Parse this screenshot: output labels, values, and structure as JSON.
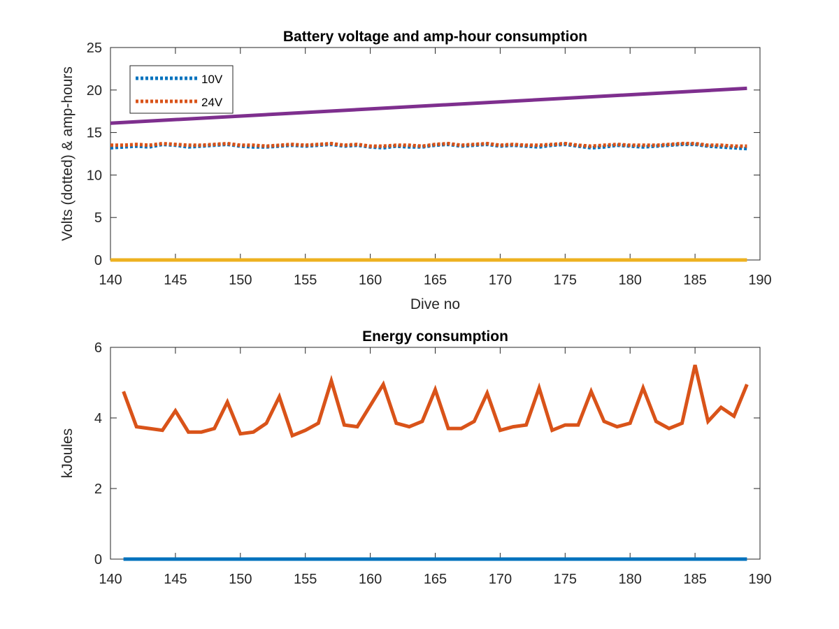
{
  "colors": {
    "volts10": "#0072BD",
    "volts24": "#D95319",
    "ampHours10": "#7E2F8E",
    "ampHours24": "#EDB120",
    "energy10": "#0072BD",
    "energy24": "#D95319"
  },
  "chart_data": [
    {
      "type": "line",
      "title": "Battery voltage and amp-hour consumption",
      "xlabel": "Dive no",
      "ylabel": "Volts (dotted) & amp-hours",
      "xlim": [
        140,
        190
      ],
      "ylim": [
        0,
        25
      ],
      "xticks": [
        140,
        145,
        150,
        155,
        160,
        165,
        170,
        175,
        180,
        185,
        190
      ],
      "yticks": [
        0,
        5,
        10,
        15,
        20,
        25
      ],
      "grid": false,
      "legend": {
        "position": "top-left",
        "entries": [
          "10V",
          "24V"
        ]
      },
      "series": [
        {
          "name": "10V",
          "style": "dotted",
          "color_key": "volts10",
          "x_start": 140,
          "x_end": 189,
          "values": [
            13.2,
            13.3,
            13.4,
            13.3,
            13.6,
            13.5,
            13.3,
            13.4,
            13.5,
            13.6,
            13.4,
            13.3,
            13.3,
            13.4,
            13.5,
            13.4,
            13.5,
            13.6,
            13.4,
            13.5,
            13.3,
            13.2,
            13.4,
            13.3,
            13.3,
            13.5,
            13.6,
            13.4,
            13.5,
            13.6,
            13.4,
            13.5,
            13.4,
            13.3,
            13.5,
            13.6,
            13.4,
            13.2,
            13.3,
            13.5,
            13.4,
            13.3,
            13.4,
            13.5,
            13.6,
            13.6,
            13.4,
            13.3,
            13.2,
            13.1
          ]
        },
        {
          "name": "24V",
          "style": "dotted",
          "color_key": "volts24",
          "x_start": 140,
          "x_end": 189,
          "values": [
            13.5,
            13.5,
            13.6,
            13.5,
            13.7,
            13.6,
            13.5,
            13.5,
            13.6,
            13.7,
            13.5,
            13.5,
            13.4,
            13.5,
            13.6,
            13.5,
            13.6,
            13.7,
            13.5,
            13.6,
            13.4,
            13.4,
            13.5,
            13.5,
            13.4,
            13.6,
            13.7,
            13.5,
            13.6,
            13.7,
            13.5,
            13.6,
            13.5,
            13.5,
            13.6,
            13.7,
            13.5,
            13.4,
            13.5,
            13.6,
            13.5,
            13.5,
            13.5,
            13.6,
            13.7,
            13.7,
            13.5,
            13.5,
            13.4,
            13.4
          ]
        },
        {
          "style": "solid",
          "color_key": "ampHours10",
          "x": [
            140,
            189
          ],
          "values": [
            16.1,
            20.2
          ]
        },
        {
          "style": "solid",
          "color_key": "ampHours24",
          "x": [
            140,
            189
          ],
          "values": [
            0,
            0
          ]
        }
      ]
    },
    {
      "type": "line",
      "title": "Energy consumption",
      "xlabel": "",
      "ylabel": "kJoules",
      "xlim": [
        140,
        190
      ],
      "ylim": [
        0,
        6
      ],
      "xticks": [
        140,
        145,
        150,
        155,
        160,
        165,
        170,
        175,
        180,
        185,
        190
      ],
      "yticks": [
        0,
        2,
        4,
        6
      ],
      "grid": false,
      "series": [
        {
          "style": "solid",
          "color_key": "energy10",
          "x": [
            141,
            189
          ],
          "values": [
            0,
            0
          ]
        },
        {
          "style": "solid",
          "color_key": "energy24",
          "x": [
            141,
            142,
            143,
            144,
            145,
            146,
            147,
            148,
            149,
            150,
            151,
            152,
            153,
            154,
            155,
            156,
            157,
            158,
            159,
            160,
            161,
            162,
            163,
            164,
            165,
            166,
            167,
            168,
            169,
            170,
            171,
            172,
            173,
            174,
            175,
            176,
            177,
            178,
            179,
            180,
            181,
            182,
            183,
            184,
            185,
            186,
            187,
            188,
            189
          ],
          "values": [
            4.75,
            3.75,
            3.7,
            3.65,
            4.2,
            3.6,
            3.6,
            3.7,
            4.45,
            3.55,
            3.6,
            3.85,
            4.6,
            3.5,
            3.65,
            3.85,
            5.05,
            3.8,
            3.75,
            4.35,
            4.95,
            3.85,
            3.75,
            3.9,
            4.8,
            3.7,
            3.7,
            3.9,
            4.7,
            3.65,
            3.75,
            3.8,
            4.85,
            3.65,
            3.8,
            3.8,
            4.75,
            3.9,
            3.75,
            3.85,
            4.85,
            3.9,
            3.7,
            3.85,
            5.5,
            3.9,
            4.3,
            4.05,
            4.95
          ]
        }
      ]
    }
  ]
}
